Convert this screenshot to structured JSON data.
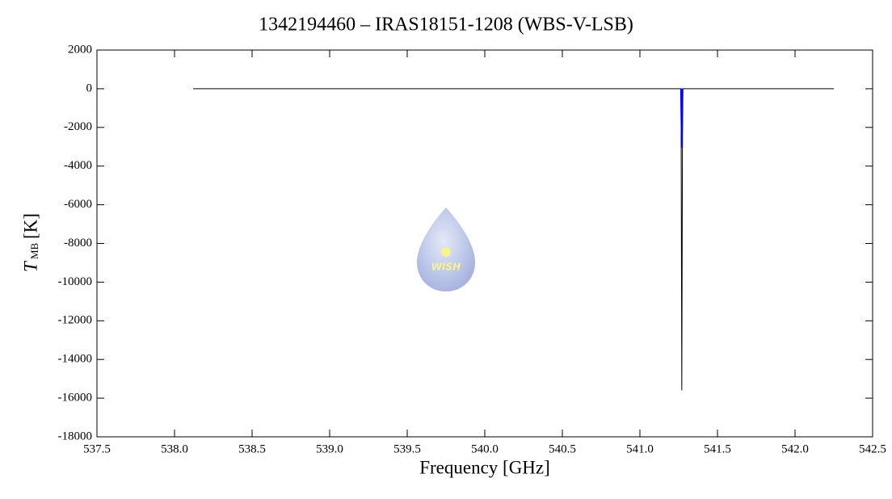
{
  "chart_data": {
    "type": "line",
    "title": "1342194460 – IRAS18151-1208 (WBS-V-LSB)",
    "xlabel": "Frequency [GHz]",
    "ylabel": {
      "main": "T",
      "sub": "MB",
      "unit": "[K]"
    },
    "watermark": "WISH",
    "xlim": [
      537.5,
      542.5
    ],
    "ylim": [
      -18000,
      2000
    ],
    "xticks": [
      537.5,
      {
        "value": 538,
        "label": "538.0"
      },
      538.5,
      {
        "value": 539,
        "label": "539.0"
      },
      539.5,
      {
        "value": 540,
        "label": "540.0"
      },
      540.5,
      {
        "value": 541,
        "label": "541.0"
      },
      541.5,
      {
        "value": 542,
        "label": "542.0"
      },
      542.5
    ],
    "yticks": [
      2000,
      0,
      -2000,
      -4000,
      -6000,
      -8000,
      -10000,
      -12000,
      -14000,
      -16000,
      -18000
    ],
    "series": [
      {
        "color": "#000000",
        "x": [
          538.12,
          541.265,
          541.27,
          541.275,
          542.25
        ],
        "values": [
          0,
          0,
          -15600,
          0,
          0
        ]
      },
      {
        "color": "#0000ff",
        "x": [
          541.265,
          541.27,
          541.275
        ],
        "values": [
          0,
          -3050,
          0
        ]
      }
    ]
  }
}
